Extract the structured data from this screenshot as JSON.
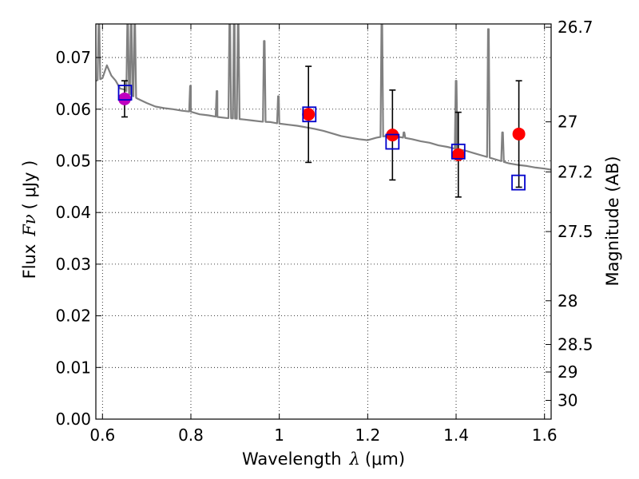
{
  "chart_data": {
    "type": "scatter",
    "xlabel_text": "Wavelength",
    "xlabel_symbol": "λ",
    "xlabel_unit": "(μm)",
    "ylabel_text": "Flux",
    "ylabel_symbol": "Fν",
    "ylabel_unit": "( μJy )",
    "y2label": "Magnitude (AB)",
    "xlim": [
      0.585,
      1.615
    ],
    "ylim": [
      0.0,
      0.0765
    ],
    "grid": true,
    "x_ticks": [
      0.6,
      0.8,
      1.0,
      1.2,
      1.4,
      1.6
    ],
    "x_tick_labels": [
      "0.6",
      "0.8",
      "1",
      "1.2",
      "1.4",
      "1.6"
    ],
    "y_ticks": [
      0.0,
      0.01,
      0.02,
      0.03,
      0.04,
      0.05,
      0.06,
      0.07
    ],
    "y_tick_labels": [
      "0.00",
      "0.01",
      "0.02",
      "0.03",
      "0.04",
      "0.05",
      "0.06",
      "0.07"
    ],
    "mag_ticks": [
      26.7,
      27,
      27.2,
      27.5,
      28,
      28.5,
      29,
      30
    ],
    "mag_tick_labels": [
      "26.7",
      "27",
      "27.2",
      "27.5",
      "28",
      "28.5",
      "29",
      "30"
    ],
    "series": [
      {
        "name": "model-spectrum",
        "kind": "line",
        "color": "#808080",
        "x": [
          0.585,
          0.595,
          0.6,
          0.61,
          0.62,
          0.63,
          0.64,
          0.65,
          0.66,
          0.67,
          0.68,
          0.7,
          0.72,
          0.74,
          0.76,
          0.78,
          0.8,
          0.82,
          0.84,
          0.86,
          0.88,
          0.9,
          0.92,
          0.94,
          0.96,
          0.98,
          1.0,
          1.02,
          1.04,
          1.06,
          1.08,
          1.1,
          1.12,
          1.14,
          1.16,
          1.18,
          1.2,
          1.22,
          1.24,
          1.26,
          1.28,
          1.3,
          1.32,
          1.34,
          1.36,
          1.38,
          1.4,
          1.42,
          1.44,
          1.46,
          1.48,
          1.5,
          1.52,
          1.54,
          1.56,
          1.58,
          1.6,
          1.615
        ],
        "y": [
          0.0655,
          0.0658,
          0.066,
          0.0685,
          0.0665,
          0.0655,
          0.064,
          0.0638,
          0.063,
          0.0625,
          0.062,
          0.0612,
          0.0605,
          0.0602,
          0.06,
          0.0597,
          0.0595,
          0.059,
          0.0588,
          0.0585,
          0.0583,
          0.0582,
          0.058,
          0.0578,
          0.0576,
          0.0575,
          0.0572,
          0.057,
          0.0568,
          0.0565,
          0.0562,
          0.0558,
          0.0553,
          0.0548,
          0.0545,
          0.0542,
          0.054,
          0.0545,
          0.0548,
          0.0548,
          0.0545,
          0.0542,
          0.0538,
          0.0535,
          0.053,
          0.0527,
          0.0523,
          0.052,
          0.0515,
          0.051,
          0.0505,
          0.05,
          0.0495,
          0.0492,
          0.049,
          0.0487,
          0.0485,
          0.0483
        ],
        "emission_lines": [
          {
            "x": 0.592,
            "peak": 0.0765
          },
          {
            "x": 0.657,
            "peak": 0.0765
          },
          {
            "x": 0.665,
            "peak": 0.0765
          },
          {
            "x": 0.673,
            "peak": 0.0765
          },
          {
            "x": 0.799,
            "peak": 0.0645
          },
          {
            "x": 0.859,
            "peak": 0.0635
          },
          {
            "x": 0.888,
            "peak": 0.0765
          },
          {
            "x": 0.898,
            "peak": 0.0765
          },
          {
            "x": 0.907,
            "peak": 0.0765
          },
          {
            "x": 0.966,
            "peak": 0.0732
          },
          {
            "x": 0.998,
            "peak": 0.0625
          },
          {
            "x": 1.232,
            "peak": 0.0765
          },
          {
            "x": 1.282,
            "peak": 0.0555
          },
          {
            "x": 1.4,
            "peak": 0.0655
          },
          {
            "x": 1.473,
            "peak": 0.0755
          },
          {
            "x": 1.505,
            "peak": 0.0555
          }
        ]
      },
      {
        "name": "observed-flux",
        "kind": "points",
        "color": "#ff0000",
        "x": [
          1.066,
          1.256,
          1.405,
          1.542
        ],
        "y": [
          0.059,
          0.055,
          0.0512,
          0.0552
        ],
        "yerr": [
          0.0093,
          0.0087,
          0.0082,
          0.0103
        ]
      },
      {
        "name": "observed-flux-short",
        "kind": "points",
        "color": "#bf00bf",
        "x": [
          0.65
        ],
        "y": [
          0.062
        ],
        "yerr": [
          0.0035
        ]
      },
      {
        "name": "model-band-flux",
        "kind": "squares",
        "color": "#0000cc",
        "x": [
          0.651,
          1.068,
          1.256,
          1.405,
          1.541
        ],
        "y": [
          0.0632,
          0.059,
          0.0537,
          0.0518,
          0.0458
        ]
      }
    ]
  }
}
